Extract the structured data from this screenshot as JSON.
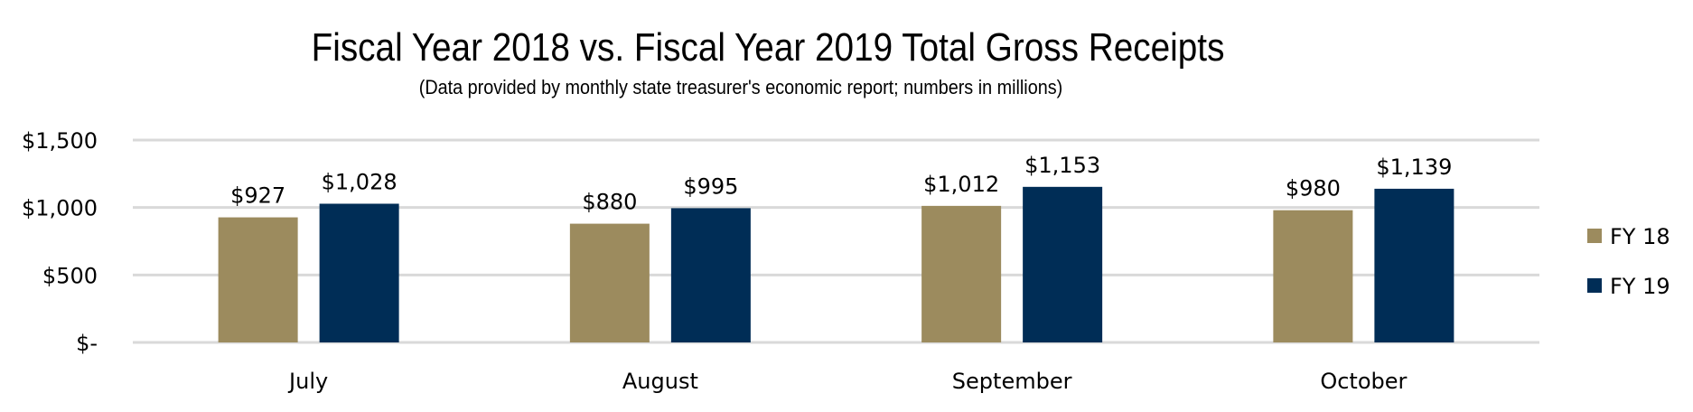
{
  "chart_data": {
    "type": "bar",
    "title": "Fiscal Year 2018 vs. Fiscal Year 2019 Total Gross Receipts",
    "subtitle": "(Data provided by monthly state treasurer's economic report; numbers in millions)",
    "categories": [
      "July",
      "August",
      "September",
      "October"
    ],
    "series": [
      {
        "name": "FY 18",
        "color": "#9C8B5E",
        "values": [
          927,
          880,
          1012,
          980
        ],
        "labels": [
          "$927",
          "$880",
          "$1,012",
          "$980"
        ]
      },
      {
        "name": "FY 19",
        "color": "#002D56",
        "values": [
          1028,
          995,
          1153,
          1139
        ],
        "labels": [
          "$1,028",
          "$995",
          "$1,153",
          "$1,139"
        ]
      }
    ],
    "ylim": [
      0,
      1500
    ],
    "yticks": [
      0,
      500,
      1000,
      1500
    ],
    "ytick_labels": [
      "$-",
      "$500",
      "$1,000",
      "$1,500"
    ],
    "grid": true,
    "legend": "right",
    "xlabel": "",
    "ylabel": ""
  }
}
